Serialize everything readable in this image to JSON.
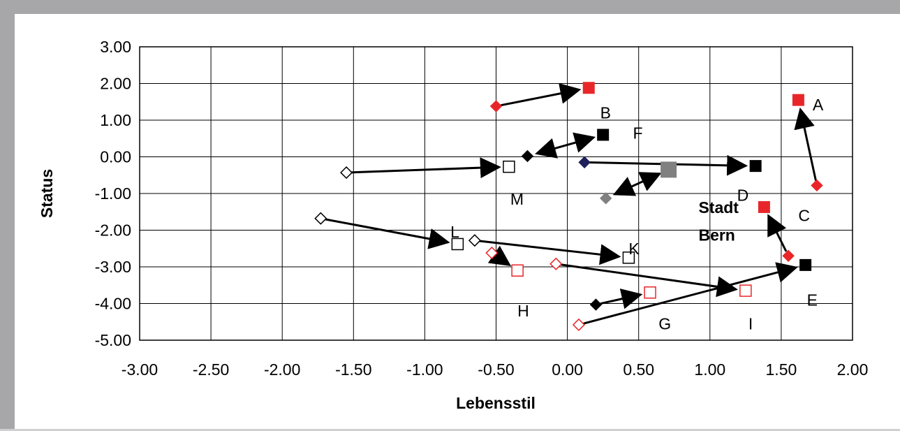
{
  "chart_data": {
    "type": "scatter",
    "title": "",
    "xlabel": "Lebensstil",
    "ylabel": "Status",
    "xlim": [
      -3.0,
      2.0
    ],
    "ylim": [
      -5.0,
      3.0
    ],
    "xticks": [
      -3.0,
      -2.5,
      -2.0,
      -1.5,
      -1.0,
      -0.5,
      0.0,
      0.5,
      1.0,
      1.5,
      2.0
    ],
    "yticks": [
      3.0,
      2.0,
      1.0,
      0.0,
      -1.0,
      -2.0,
      -3.0,
      -4.0,
      -5.0
    ],
    "xtick_labels": [
      "-3.00",
      "-2.50",
      "-2.00",
      "-1.50",
      "-1.00",
      "-0.50",
      "0.00",
      "0.50",
      "1.00",
      "1.50",
      "2.00"
    ],
    "ytick_labels": [
      "3.00",
      "2.00",
      "1.00",
      "0.00",
      "-1.00",
      "-2.00",
      "-3.00",
      "-4.00",
      "-5.00"
    ],
    "grid": true,
    "colors": {
      "red": "#e8262a",
      "black": "#000000",
      "gray": "#808080",
      "navy": "#1f1f5a",
      "frame": "#a7a7a9"
    },
    "points": [
      {
        "id": "A",
        "from": [
          1.75,
          -0.78
        ],
        "to": [
          1.62,
          1.55
        ],
        "from_shape": "diamond-filled",
        "to_shape": "square-filled",
        "color": "red"
      },
      {
        "id": "B",
        "from": [
          -0.5,
          1.38
        ],
        "to": [
          0.15,
          1.88
        ],
        "from_shape": "diamond-filled",
        "to_shape": "square-filled",
        "color": "red"
      },
      {
        "id": "C",
        "from": [
          1.55,
          -2.7
        ],
        "to": [
          1.38,
          -1.37
        ],
        "from_shape": "diamond-filled",
        "to_shape": "square-filled",
        "color": "red"
      },
      {
        "id": "D",
        "from": [
          0.12,
          -0.15
        ],
        "to": [
          1.32,
          -0.25
        ],
        "from_shape": "diamond-filled",
        "to_shape": "square-filled",
        "color": "black",
        "from_color": "navy"
      },
      {
        "id": "E",
        "from": [
          0.08,
          -4.58
        ],
        "to": [
          1.67,
          -2.95
        ],
        "from_shape": "diamond-open",
        "to_shape": "square-filled",
        "color": "black",
        "from_color": "red"
      },
      {
        "id": "F",
        "from": [
          -0.28,
          0.02
        ],
        "to": [
          0.25,
          0.6
        ],
        "from_shape": "diamond-filled",
        "to_shape": "square-filled",
        "color": "black",
        "arrow": "both"
      },
      {
        "id": "G",
        "from": [
          0.2,
          -4.03
        ],
        "to": [
          0.58,
          -3.7
        ],
        "from_shape": "diamond-filled",
        "to_shape": "square-open",
        "color": "black",
        "to_color": "red"
      },
      {
        "id": "H",
        "from": [
          -0.53,
          -2.62
        ],
        "to": [
          -0.35,
          -3.1
        ],
        "from_shape": "diamond-open",
        "to_shape": "square-open",
        "color": "red"
      },
      {
        "id": "I",
        "from": [
          -0.08,
          -2.92
        ],
        "to": [
          1.25,
          -3.65
        ],
        "from_shape": "diamond-open",
        "to_shape": "square-open",
        "color": "red"
      },
      {
        "id": "K",
        "from": [
          -0.65,
          -2.28
        ],
        "to": [
          0.43,
          -2.75
        ],
        "from_shape": "diamond-open",
        "to_shape": "square-open",
        "color": "black"
      },
      {
        "id": "L",
        "from": [
          -1.73,
          -1.68
        ],
        "to": [
          -0.77,
          -2.38
        ],
        "from_shape": "diamond-open",
        "to_shape": "square-open",
        "color": "black"
      },
      {
        "id": "M",
        "from": [
          -1.55,
          -0.43
        ],
        "to": [
          -0.41,
          -0.27
        ],
        "from_shape": "diamond-open",
        "to_shape": "square-open",
        "color": "black"
      },
      {
        "id": "Stadt Bern",
        "from": [
          0.27,
          -1.13
        ],
        "to": [
          0.71,
          -0.35
        ],
        "from_shape": "diamond-filled",
        "to_shape": "square-filled",
        "color": "gray",
        "arrow": "both"
      }
    ],
    "labels": [
      {
        "text": "A",
        "x": 1.72,
        "y": 1.42,
        "bold": false
      },
      {
        "text": "B",
        "x": 0.23,
        "y": 1.2,
        "bold": false
      },
      {
        "text": "C",
        "x": 1.62,
        "y": -1.6,
        "bold": false
      },
      {
        "text": "D",
        "x": 1.19,
        "y": -1.05,
        "bold": false
      },
      {
        "text": "E",
        "x": 1.68,
        "y": -3.9,
        "bold": false
      },
      {
        "text": "F",
        "x": 0.46,
        "y": 0.65,
        "bold": false
      },
      {
        "text": "G",
        "x": 0.64,
        "y": -4.55,
        "bold": false
      },
      {
        "text": "H",
        "x": -0.35,
        "y": -4.2,
        "bold": false
      },
      {
        "text": "I",
        "x": 1.27,
        "y": -4.55,
        "bold": false
      },
      {
        "text": "K",
        "x": 0.43,
        "y": -2.5,
        "bold": false
      },
      {
        "text": "L",
        "x": -0.82,
        "y": -2.05,
        "bold": false
      },
      {
        "text": "M",
        "x": -0.4,
        "y": -1.15,
        "bold": false
      },
      {
        "text": "Stadt",
        "x": 0.92,
        "y": -1.38,
        "bold": true
      },
      {
        "text": "Bern",
        "x": 0.92,
        "y": -2.13,
        "bold": true
      }
    ]
  }
}
